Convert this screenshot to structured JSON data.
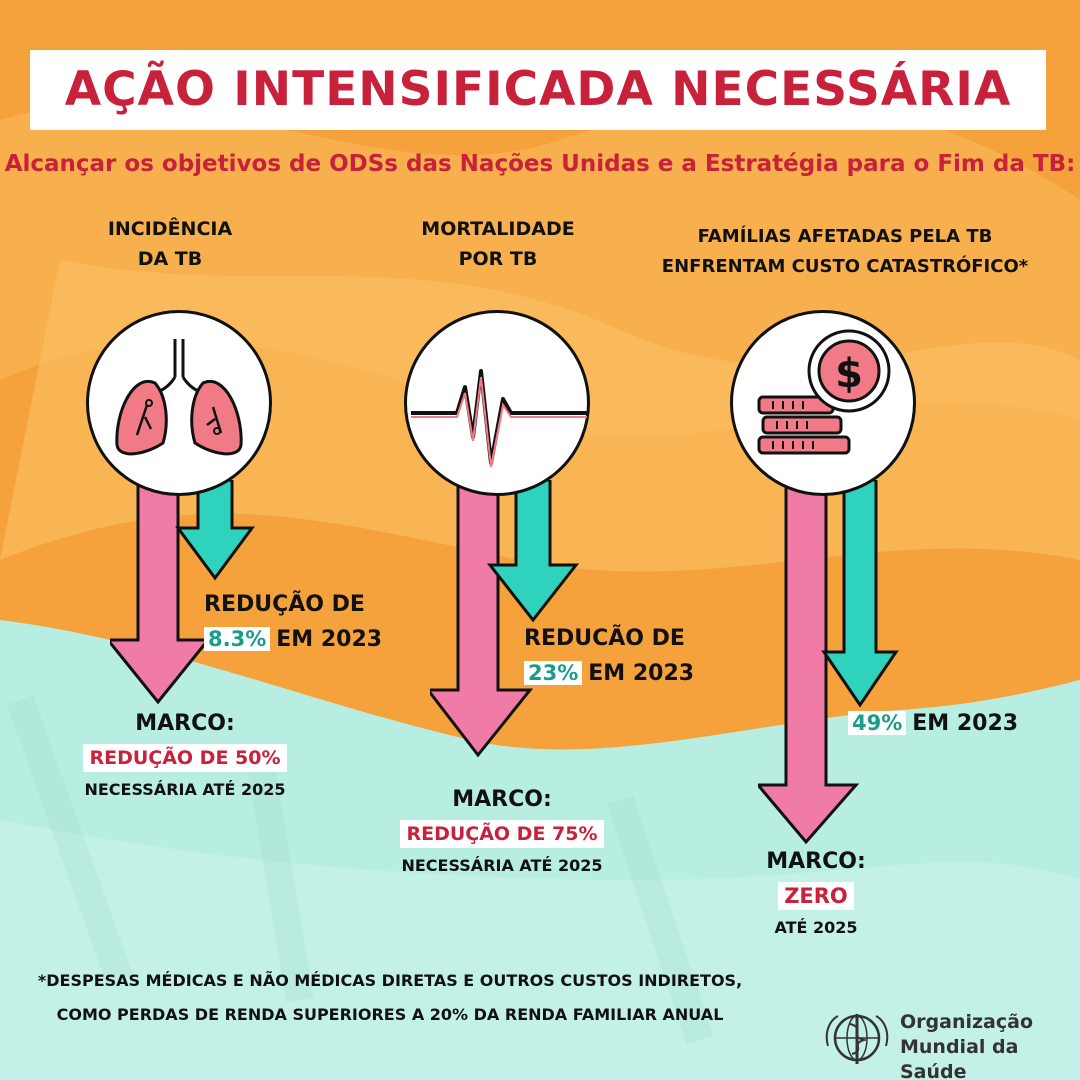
{
  "title": "AÇÃO INTENSIFICADA NECESSÁRIA",
  "subtitle": "Alcançar os objetivos de ODSs das Nações Unidas e a Estratégia para o Fim da TB:",
  "colors": {
    "orange": "#f6a23c",
    "teal_bg": "#b8ede2",
    "red": "#c8213b",
    "pink_arrow": "#f07ba7",
    "teal_arrow": "#2fd2bd",
    "teal_text": "#1a9c8a"
  },
  "columns": [
    {
      "heading_line1": "INCIDÊNCIA",
      "heading_line2": "DA TB",
      "icon": "lungs-icon",
      "progress_line1": "REDUÇÃO DE",
      "progress_value": "8.3%",
      "progress_suffix": "EM 2023",
      "milestone_label": "MARCO:",
      "milestone_goal": "REDUÇÃO DE 50%",
      "milestone_note": "NECESSÁRIA ATÉ 2025"
    },
    {
      "heading_line1": "MORTALIDADE",
      "heading_line2": "POR TB",
      "icon": "heartbeat-line-icon",
      "progress_line1": "REDUCÃO DE",
      "progress_value": "23%",
      "progress_suffix": "EM 2023",
      "milestone_label": "MARCO:",
      "milestone_goal": "REDUÇÃO DE 75%",
      "milestone_note": "NECESSÁRIA ATÉ 2025"
    },
    {
      "heading_line1": "FAMÍLIAS AFETADAS PELA TB",
      "heading_line2": "ENFRENTAM CUSTO CATASTRÓFICO*",
      "icon": "coins-dollar-icon",
      "progress_value": "49%",
      "progress_suffix": "EM 2023",
      "milestone_label": "MARCO:",
      "milestone_goal": "ZERO",
      "milestone_note": "ATÉ 2025"
    }
  ],
  "footnote_line1": "*DESPESAS MÉDICAS E NÃO MÉDICAS DIRETAS E OUTROS CUSTOS INDIRETOS,",
  "footnote_line2": "COMO PERDAS DE RENDA SUPERIORES A 20% DA RENDA FAMILIAR ANUAL",
  "logo": {
    "line1": "Organização",
    "line2": "Mundial da Saúde",
    "icon": "who-emblem-icon"
  }
}
